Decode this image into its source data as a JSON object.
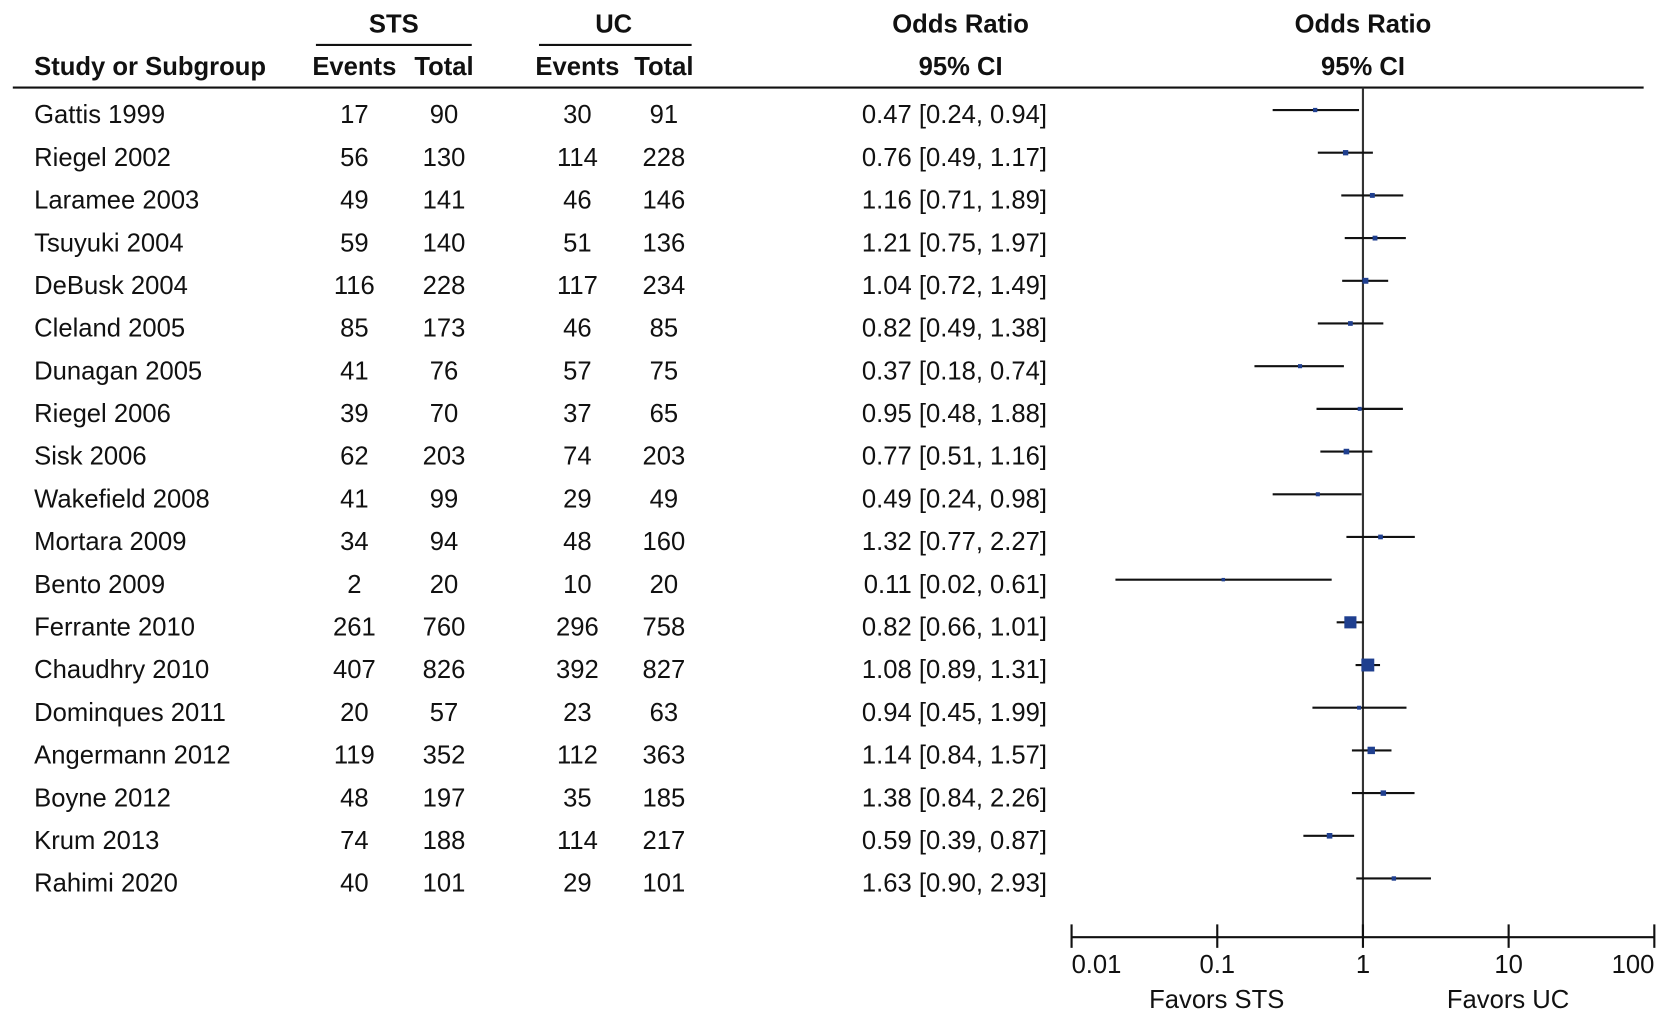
{
  "chart_data": {
    "type": "forest",
    "study_header": "Study or Subgroup",
    "groups": [
      {
        "name": "STS",
        "columns": [
          "Events",
          "Total"
        ]
      },
      {
        "name": "UC",
        "columns": [
          "Events",
          "Total"
        ]
      }
    ],
    "or_header": [
      "Odds Ratio",
      "95% CI"
    ],
    "plot_header": [
      "Odds Ratio",
      "95% CI"
    ],
    "rows": [
      {
        "study": "Gattis 1999",
        "sts_events": 17,
        "sts_total": 90,
        "uc_events": 30,
        "uc_total": 91,
        "or": 0.47,
        "ci_low": 0.24,
        "ci_high": 0.94,
        "label": "0.47 [0.24, 0.94]"
      },
      {
        "study": "Riegel 2002",
        "sts_events": 56,
        "sts_total": 130,
        "uc_events": 114,
        "uc_total": 228,
        "or": 0.76,
        "ci_low": 0.49,
        "ci_high": 1.17,
        "label": "0.76 [0.49, 1.17]"
      },
      {
        "study": "Laramee 2003",
        "sts_events": 49,
        "sts_total": 141,
        "uc_events": 46,
        "uc_total": 146,
        "or": 1.16,
        "ci_low": 0.71,
        "ci_high": 1.89,
        "label": "1.16 [0.71, 1.89]"
      },
      {
        "study": "Tsuyuki 2004",
        "sts_events": 59,
        "sts_total": 140,
        "uc_events": 51,
        "uc_total": 136,
        "or": 1.21,
        "ci_low": 0.75,
        "ci_high": 1.97,
        "label": "1.21 [0.75, 1.97]"
      },
      {
        "study": "DeBusk 2004",
        "sts_events": 116,
        "sts_total": 228,
        "uc_events": 117,
        "uc_total": 234,
        "or": 1.04,
        "ci_low": 0.72,
        "ci_high": 1.49,
        "label": "1.04 [0.72, 1.49]"
      },
      {
        "study": "Cleland 2005",
        "sts_events": 85,
        "sts_total": 173,
        "uc_events": 46,
        "uc_total": 85,
        "or": 0.82,
        "ci_low": 0.49,
        "ci_high": 1.38,
        "label": "0.82 [0.49, 1.38]"
      },
      {
        "study": "Dunagan 2005",
        "sts_events": 41,
        "sts_total": 76,
        "uc_events": 57,
        "uc_total": 75,
        "or": 0.37,
        "ci_low": 0.18,
        "ci_high": 0.74,
        "label": "0.37 [0.18, 0.74]"
      },
      {
        "study": "Riegel 2006",
        "sts_events": 39,
        "sts_total": 70,
        "uc_events": 37,
        "uc_total": 65,
        "or": 0.95,
        "ci_low": 0.48,
        "ci_high": 1.88,
        "label": "0.95 [0.48, 1.88]"
      },
      {
        "study": "Sisk 2006",
        "sts_events": 62,
        "sts_total": 203,
        "uc_events": 74,
        "uc_total": 203,
        "or": 0.77,
        "ci_low": 0.51,
        "ci_high": 1.16,
        "label": "0.77 [0.51, 1.16]"
      },
      {
        "study": "Wakefield 2008",
        "sts_events": 41,
        "sts_total": 99,
        "uc_events": 29,
        "uc_total": 49,
        "or": 0.49,
        "ci_low": 0.24,
        "ci_high": 0.98,
        "label": "0.49 [0.24, 0.98]"
      },
      {
        "study": "Mortara 2009",
        "sts_events": 34,
        "sts_total": 94,
        "uc_events": 48,
        "uc_total": 160,
        "or": 1.32,
        "ci_low": 0.77,
        "ci_high": 2.27,
        "label": "1.32 [0.77, 2.27]"
      },
      {
        "study": "Bento 2009",
        "sts_events": 2,
        "sts_total": 20,
        "uc_events": 10,
        "uc_total": 20,
        "or": 0.11,
        "ci_low": 0.02,
        "ci_high": 0.61,
        "label": "0.11 [0.02, 0.61]"
      },
      {
        "study": "Ferrante 2010",
        "sts_events": 261,
        "sts_total": 760,
        "uc_events": 296,
        "uc_total": 758,
        "or": 0.82,
        "ci_low": 0.66,
        "ci_high": 1.01,
        "label": "0.82 [0.66, 1.01]"
      },
      {
        "study": "Chaudhry 2010",
        "sts_events": 407,
        "sts_total": 826,
        "uc_events": 392,
        "uc_total": 827,
        "or": 1.08,
        "ci_low": 0.89,
        "ci_high": 1.31,
        "label": "1.08 [0.89, 1.31]"
      },
      {
        "study": "Dominques 2011",
        "sts_events": 20,
        "sts_total": 57,
        "uc_events": 23,
        "uc_total": 63,
        "or": 0.94,
        "ci_low": 0.45,
        "ci_high": 1.99,
        "label": "0.94 [0.45, 1.99]"
      },
      {
        "study": "Angermann 2012",
        "sts_events": 119,
        "sts_total": 352,
        "uc_events": 112,
        "uc_total": 363,
        "or": 1.14,
        "ci_low": 0.84,
        "ci_high": 1.57,
        "label": "1.14 [0.84, 1.57]"
      },
      {
        "study": "Boyne 2012",
        "sts_events": 48,
        "sts_total": 197,
        "uc_events": 35,
        "uc_total": 185,
        "or": 1.38,
        "ci_low": 0.84,
        "ci_high": 2.26,
        "label": "1.38 [0.84, 2.26]"
      },
      {
        "study": "Krum 2013",
        "sts_events": 74,
        "sts_total": 188,
        "uc_events": 114,
        "uc_total": 217,
        "or": 0.59,
        "ci_low": 0.39,
        "ci_high": 0.87,
        "label": "0.59 [0.39, 0.87]"
      },
      {
        "study": "Rahimi 2020",
        "sts_events": 40,
        "sts_total": 101,
        "uc_events": 29,
        "uc_total": 101,
        "or": 1.63,
        "ci_low": 0.9,
        "ci_high": 2.93,
        "label": "1.63 [0.90, 2.93]"
      }
    ],
    "xlim": [
      0.01,
      100
    ],
    "xticks": [
      0.01,
      0.1,
      1,
      10,
      100
    ],
    "log_x": true,
    "reference": 1,
    "favors": [
      "Favors STS",
      "Favors UC"
    ],
    "color": "#1f3f8f"
  }
}
